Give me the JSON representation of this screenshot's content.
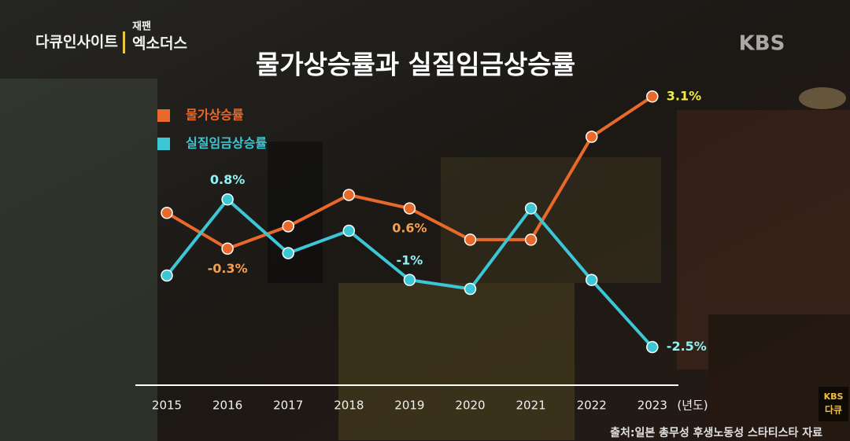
{
  "chart_data": {
    "type": "line",
    "title": "물가상승률과 실질임금상승률",
    "categories": [
      "2015",
      "2016",
      "2017",
      "2018",
      "2019",
      "2020",
      "2021",
      "2022",
      "2023"
    ],
    "x_unit": "(년도)",
    "series": [
      {
        "name": "물가상승률",
        "color": "#e8692a",
        "label_color": "#f5a050",
        "values": [
          0.5,
          -0.3,
          0.2,
          0.9,
          0.6,
          -0.1,
          -0.1,
          2.2,
          3.1
        ],
        "value_labels": [
          null,
          "-0.3%",
          null,
          null,
          "0.6%",
          null,
          null,
          null,
          "3.1%"
        ]
      },
      {
        "name": "실질임금상승률",
        "color": "#3cc6d6",
        "label_color": "#8ff2f5",
        "values": [
          -0.9,
          0.8,
          -0.4,
          0.1,
          -1,
          -1.2,
          0.6,
          -1,
          -2.5
        ],
        "value_labels": [
          null,
          "0.8%",
          null,
          null,
          "-1%",
          null,
          null,
          null,
          "-2.5%"
        ]
      }
    ],
    "ylim": [
      -3,
      3.5
    ],
    "grid": false,
    "source": "출처:일본 총무성 후생노동성 스타티스타 자료",
    "program": "다큐인사이트",
    "episode_tag": "재팬",
    "episode": "엑소더스",
    "broadcaster": "KBS",
    "channel_badge": [
      "KBS",
      "다큐"
    ]
  }
}
